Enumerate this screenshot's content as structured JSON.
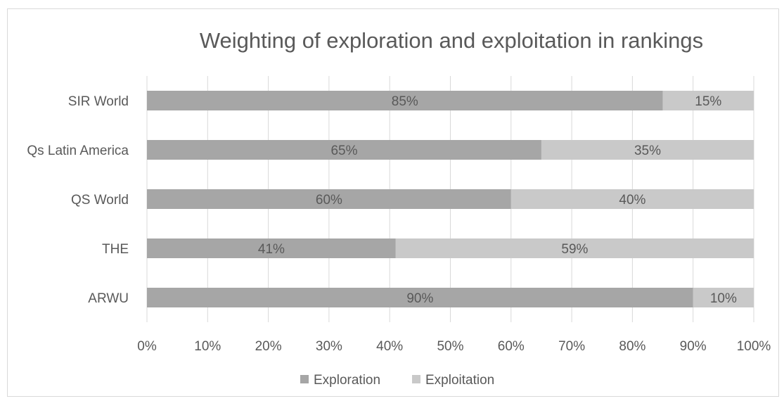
{
  "chart_data": {
    "type": "bar",
    "orientation": "horizontal",
    "stacked": true,
    "title": "Weighting of exploration and exploitation in rankings",
    "categories": [
      "SIR World",
      "Qs Latin America",
      "QS World",
      "THE",
      "ARWU"
    ],
    "series": [
      {
        "name": "Exploration",
        "color": "#a6a6a6",
        "values": [
          85,
          65,
          60,
          41,
          90
        ],
        "labels": [
          "85%",
          "65%",
          "60%",
          "41%",
          "90%"
        ]
      },
      {
        "name": "Exploitation",
        "color": "#c9c9c9",
        "values": [
          15,
          35,
          40,
          59,
          10
        ],
        "labels": [
          "15%",
          "35%",
          "40%",
          "59%",
          "10%"
        ]
      }
    ],
    "xlim": [
      0,
      100
    ],
    "x_ticks": [
      "0%",
      "10%",
      "20%",
      "30%",
      "40%",
      "50%",
      "60%",
      "70%",
      "80%",
      "90%",
      "100%"
    ],
    "grid": true,
    "legend_position": "bottom"
  }
}
